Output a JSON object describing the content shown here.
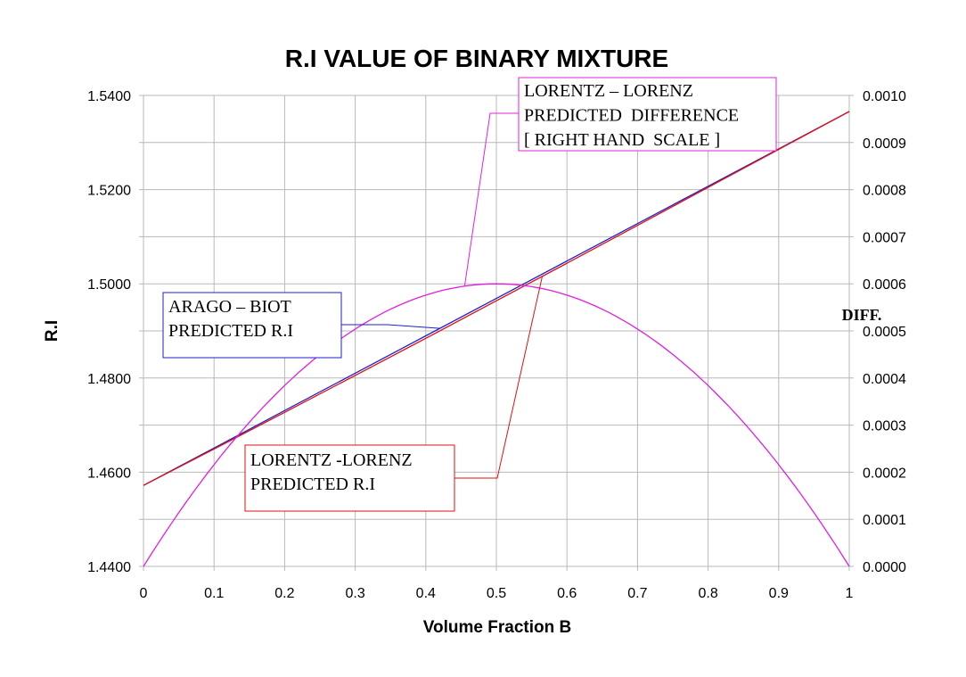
{
  "chart_data": {
    "type": "line",
    "title": "R.I VALUE OF BINARY MIXTURE",
    "xlabel": "Volume Fraction B",
    "ylabel": "R.I",
    "y2label": "DIFF.",
    "xlim": [
      0,
      1
    ],
    "ylim": [
      1.44,
      1.54
    ],
    "y2lim": [
      0,
      0.001
    ],
    "x_ticks": [
      "0",
      "0.1",
      "0.2",
      "0.3",
      "0.4",
      "0.5",
      "0.6",
      "0.7",
      "0.8",
      "0.9",
      "1"
    ],
    "y_ticks": [
      "1.4400",
      "1.4600",
      "1.4800",
      "1.5000",
      "1.5200",
      "1.5400"
    ],
    "y2_ticks": [
      "0.0000",
      "0.0001",
      "0.0002",
      "0.0003",
      "0.0004",
      "0.0005",
      "0.0006",
      "0.0007",
      "0.0008",
      "0.0009",
      "0.0010"
    ],
    "grid": true,
    "x": [
      0,
      0.1,
      0.2,
      0.3,
      0.4,
      0.5,
      0.6,
      0.7,
      0.8,
      0.9,
      1
    ],
    "series": [
      {
        "name": "ARAGO – BIOT PREDICTED R.I",
        "axis": "left",
        "color": "#1f1fd0",
        "values": [
          1.4572,
          1.46514,
          1.47308,
          1.48102,
          1.48896,
          1.4969,
          1.50484,
          1.51278,
          1.52072,
          1.52866,
          1.5366
        ]
      },
      {
        "name": "LORENTZ -LORENZ PREDICTED R.I",
        "axis": "left",
        "color": "#e01010",
        "values": [
          1.4572,
          1.46493,
          1.47271,
          1.48054,
          1.48843,
          1.4964,
          1.50437,
          1.5124,
          1.52047,
          1.52855,
          1.5366
        ]
      },
      {
        "name": "LORENTZ – LORENZ PREDICTED DIFFERENCE [ RIGHT HAND SCALE ]",
        "axis": "right",
        "color": "#e020e0",
        "values": [
          0,
          0.000216,
          0.000384,
          0.000504,
          0.000576,
          0.0006,
          0.000576,
          0.000504,
          0.000384,
          0.000216,
          0
        ]
      }
    ],
    "annotations": [
      {
        "lines": [
          "ARAGO – BIOT",
          "PREDICTED R.I"
        ],
        "color": "#1f1fd0",
        "target_series": 0,
        "target_x": 0.42
      },
      {
        "lines": [
          "LORENTZ -LORENZ",
          "PREDICTED R.I"
        ],
        "color": "#e01010",
        "target_series": 1,
        "target_x": 0.565
      },
      {
        "lines": [
          "LORENTZ – LORENZ",
          "PREDICTED  DIFFERENCE",
          "[ RIGHT HAND  SCALE ]"
        ],
        "color": "#e020e0",
        "target_series": 2,
        "target_x": 0.455
      }
    ]
  }
}
